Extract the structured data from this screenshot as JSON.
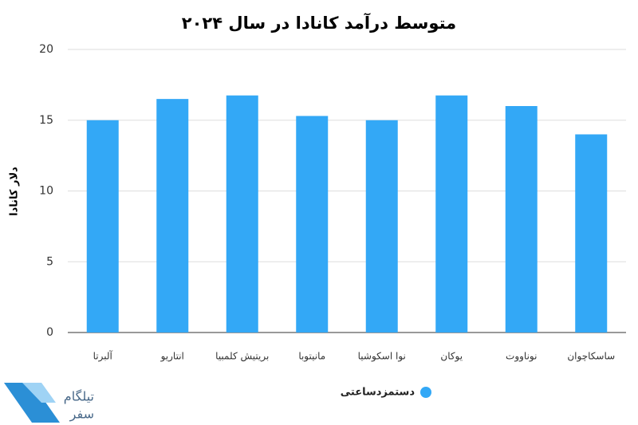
{
  "chart_data": {
    "type": "bar",
    "title": "متوسط درآمد کانادا در  سال ۲۰۲۴",
    "y_label": "دلار کانادا",
    "categories": [
      "آلبرتا",
      "انتاریو",
      "بریتیش کلمبیا",
      "مانیتوبا",
      "نوا اسکوشیا",
      "یوکان",
      "نوناووت",
      "ساسکاچوان"
    ],
    "series": [
      {
        "name": "دستمزدساعتی",
        "color": "#33a8f6",
        "values": [
          15,
          16.5,
          16.75,
          15.3,
          15,
          16.75,
          16,
          14
        ]
      }
    ],
    "ylim": [
      0,
      20
    ],
    "yticks": [
      0,
      5,
      10,
      15,
      20
    ],
    "grid": true,
    "legend": "bottom"
  },
  "logo": {
    "line1": "تیلگام",
    "line2": "سفر"
  }
}
